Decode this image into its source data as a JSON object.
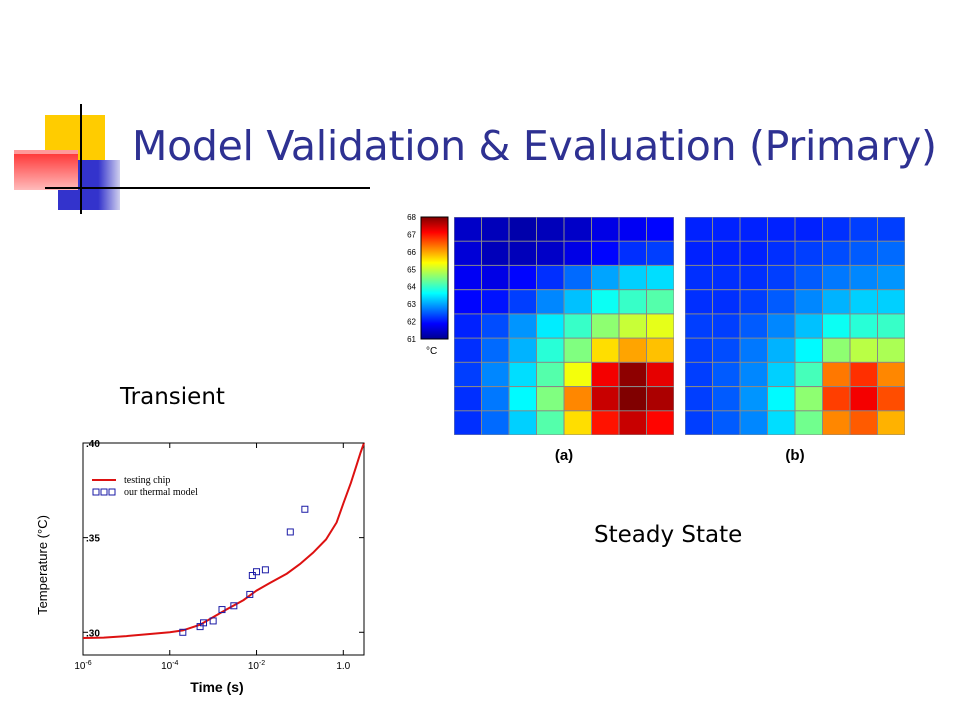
{
  "slide": {
    "title": "Model Validation & Evaluation (Primary)",
    "caption_transient": "Transient",
    "caption_steady": "Steady State"
  },
  "colors": {
    "title": "#2e3192",
    "deco_yellow": "#ffcc00",
    "deco_blue": "#3333cc",
    "deco_red": "#ff3333",
    "curve": "#dd1111",
    "marker": "#1a1aa6"
  },
  "chart_data": [
    {
      "type": "line",
      "xlabel": "Time (s)",
      "ylabel": "Temperature (°C)",
      "xscale": "log",
      "xlim": [
        1e-06,
        3
      ],
      "ylim": [
        28.8,
        40
      ],
      "xticks": [
        {
          "value": 1e-06,
          "base": "10",
          "exp": "-6"
        },
        {
          "value": 0.0001,
          "base": "10",
          "exp": "-4"
        },
        {
          "value": 0.01,
          "base": "10",
          "exp": "-2"
        },
        {
          "value": 1.0,
          "base": "1.0",
          "exp": ""
        }
      ],
      "yticks": [
        30,
        35,
        40
      ],
      "ytick_labels": [
        ".30",
        ".35",
        ".40"
      ],
      "legend_position": "top-left",
      "series": [
        {
          "name": "testing chip",
          "style": "line",
          "x": [
            1e-06,
            3e-06,
            1e-05,
            3e-05,
            0.0001,
            0.0002,
            0.0005,
            0.001,
            0.002,
            0.005,
            0.01,
            0.02,
            0.05,
            0.1,
            0.2,
            0.4,
            0.7,
            1.0,
            1.5,
            2.0,
            2.5,
            3.0
          ],
          "y": [
            29.7,
            29.72,
            29.8,
            29.9,
            30.0,
            30.1,
            30.4,
            30.8,
            31.2,
            31.7,
            32.2,
            32.6,
            33.1,
            33.6,
            34.2,
            34.9,
            35.8,
            36.8,
            37.9,
            38.8,
            39.5,
            40.0
          ]
        },
        {
          "name": "our thermal model",
          "style": "markers",
          "x": [
            0.0002,
            0.0005,
            0.0006,
            0.001,
            0.0016,
            0.003,
            0.007,
            0.008,
            0.01,
            0.016,
            0.06,
            0.13
          ],
          "y": [
            30.0,
            30.3,
            30.5,
            30.6,
            31.2,
            31.4,
            32.0,
            33.0,
            33.2,
            33.3,
            35.3,
            36.5
          ]
        }
      ]
    },
    {
      "type": "heatmap",
      "title": "(a)",
      "colorbar": {
        "unit": "°C",
        "ticks": [
          68,
          67,
          66,
          65,
          64,
          63,
          62,
          61
        ],
        "min": 61,
        "max": 68
      },
      "grid": [
        [
          61.5,
          61.4,
          61.3,
          61.4,
          61.5,
          61.7,
          61.8,
          61.9
        ],
        [
          61.6,
          61.4,
          61.4,
          61.5,
          61.7,
          61.9,
          62.2,
          62.3
        ],
        [
          61.8,
          61.7,
          61.9,
          62.2,
          62.6,
          63.0,
          63.3,
          63.4
        ],
        [
          61.9,
          62.0,
          62.3,
          62.8,
          63.2,
          63.7,
          64.0,
          64.2
        ],
        [
          62.1,
          62.4,
          62.9,
          63.5,
          64.0,
          64.6,
          65.0,
          65.2
        ],
        [
          62.2,
          62.6,
          63.1,
          63.9,
          64.5,
          65.6,
          66.0,
          65.8
        ],
        [
          62.3,
          62.8,
          63.4,
          64.2,
          65.3,
          67.2,
          67.9,
          67.3
        ],
        [
          62.2,
          62.7,
          63.6,
          64.5,
          66.2,
          67.5,
          68.0,
          67.7
        ],
        [
          62.2,
          62.6,
          63.3,
          64.2,
          65.6,
          67.0,
          67.5,
          67.1
        ]
      ]
    },
    {
      "type": "heatmap",
      "title": "(b)",
      "grid": [
        [
          62.1,
          62.1,
          62.1,
          62.1,
          62.1,
          62.2,
          62.3,
          62.3
        ],
        [
          62.1,
          62.1,
          62.1,
          62.2,
          62.3,
          62.4,
          62.5,
          62.6
        ],
        [
          62.2,
          62.2,
          62.2,
          62.3,
          62.5,
          62.7,
          62.8,
          62.9
        ],
        [
          62.2,
          62.2,
          62.3,
          62.5,
          62.8,
          63.1,
          63.3,
          63.3
        ],
        [
          62.3,
          62.3,
          62.5,
          62.8,
          63.2,
          63.7,
          63.9,
          64.0
        ],
        [
          62.3,
          62.4,
          62.7,
          63.1,
          63.6,
          64.6,
          64.9,
          64.8
        ],
        [
          62.3,
          62.5,
          62.8,
          63.3,
          64.1,
          66.3,
          66.8,
          66.2
        ],
        [
          62.3,
          62.5,
          62.9,
          63.6,
          64.6,
          66.7,
          67.2,
          66.6
        ],
        [
          62.3,
          62.5,
          62.8,
          63.4,
          64.4,
          66.2,
          66.5,
          65.9
        ]
      ]
    }
  ]
}
